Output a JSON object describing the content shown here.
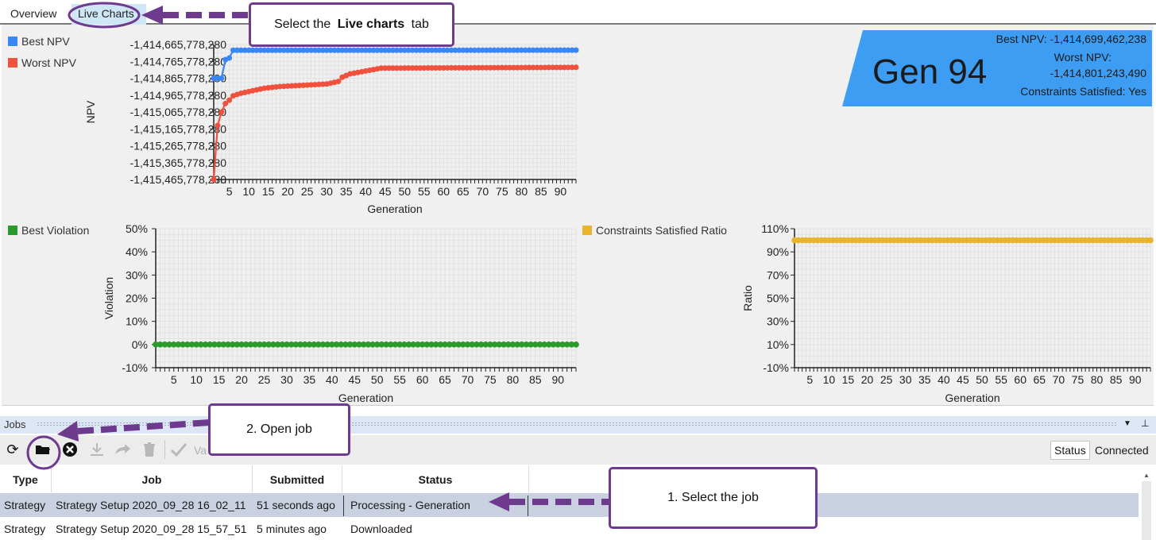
{
  "tabs": [
    {
      "label": "Overview"
    },
    {
      "label": "Live Charts"
    }
  ],
  "npv_chart": {
    "legend": [
      {
        "name": "Best NPV",
        "color": "#3a86f5"
      },
      {
        "name": "Worst NPV",
        "color": "#f0503c"
      }
    ],
    "ylabel": "NPV",
    "xlabel": "Generation",
    "yticks": [
      "-1,414,665,778,280",
      "-1,414,765,778,280",
      "-1,414,865,778,280",
      "-1,414,965,778,280",
      "-1,415,065,778,280",
      "-1,415,165,778,280",
      "-1,415,265,778,280",
      "-1,415,365,778,280",
      "-1,415,465,778,280"
    ],
    "xticks": [
      "5",
      "10",
      "15",
      "20",
      "25",
      "30",
      "35",
      "40",
      "45",
      "50",
      "55",
      "60",
      "65",
      "70",
      "75",
      "80",
      "85",
      "90"
    ]
  },
  "gen_badge": {
    "title": "Gen 94",
    "best_npv": "Best NPV: -1,414,699,462,238",
    "worst_npv_label": "Worst NPV:",
    "worst_npv_value": "-1,414,801,243,490",
    "constraints": "Constraints Satisfied: Yes",
    "color": "#3d9df2"
  },
  "violation_chart": {
    "legend": [
      {
        "name": "Best Violation",
        "color": "#2a9a2a"
      }
    ],
    "ylabel": "Violation",
    "xlabel": "Generation",
    "yticks": [
      "50%",
      "40%",
      "30%",
      "20%",
      "10%",
      "0%",
      "-10%"
    ],
    "xticks": [
      "5",
      "10",
      "15",
      "20",
      "25",
      "30",
      "35",
      "40",
      "45",
      "50",
      "55",
      "60",
      "65",
      "70",
      "75",
      "80",
      "85",
      "90"
    ]
  },
  "ratio_chart": {
    "legend": [
      {
        "name": "Constraints Satisfied Ratio",
        "color": "#e8b430"
      }
    ],
    "ylabel": "Ratio",
    "xlabel": "Generation",
    "yticks": [
      "110%",
      "90%",
      "70%",
      "50%",
      "30%",
      "10%",
      "-10%"
    ],
    "xticks": [
      "5",
      "10",
      "15",
      "20",
      "25",
      "30",
      "35",
      "40",
      "45",
      "50",
      "55",
      "60",
      "65",
      "70",
      "75",
      "80",
      "85",
      "90"
    ]
  },
  "chart_data": [
    {
      "type": "line",
      "xlabel": "Generation",
      "ylabel": "NPV",
      "xlim": [
        1,
        94
      ],
      "ylim": [
        -1415465778280,
        -1414665778280
      ],
      "series": [
        {
          "name": "Best NPV",
          "color": "#3a86f5",
          "x": [
            1,
            2,
            3,
            4,
            5,
            6,
            94
          ],
          "y": [
            -1414865778280,
            -1414865778280,
            -1414865778280,
            -1414755778280,
            -1414745778280,
            -1414700000000,
            -1414699462238
          ]
        },
        {
          "name": "Worst NPV",
          "color": "#f0503c",
          "x": [
            1,
            2,
            3,
            4,
            5,
            6,
            8,
            10,
            14,
            18,
            22,
            26,
            30,
            33,
            34,
            36,
            44,
            94
          ],
          "y": [
            -1415465778280,
            -1415145778280,
            -1415065778280,
            -1415015778280,
            -1414995778280,
            -1414970000000,
            -1414955000000,
            -1414945000000,
            -1414925000000,
            -1414915000000,
            -1414910000000,
            -1414905000000,
            -1414900000000,
            -1414885000000,
            -1414860000000,
            -1414840000000,
            -1414806000000,
            -1414801243490
          ]
        }
      ]
    },
    {
      "type": "line",
      "xlabel": "Generation",
      "ylabel": "Violation",
      "xlim": [
        1,
        94
      ],
      "ylim": [
        -10,
        50
      ],
      "series": [
        {
          "name": "Best Violation",
          "color": "#2a9a2a",
          "x": [
            1,
            94
          ],
          "y": [
            0,
            0
          ]
        }
      ]
    },
    {
      "type": "line",
      "xlabel": "Generation",
      "ylabel": "Ratio",
      "xlim": [
        1,
        94
      ],
      "ylim": [
        -10,
        110
      ],
      "series": [
        {
          "name": "Constraints Satisfied Ratio",
          "color": "#e8b430",
          "x": [
            1,
            94
          ],
          "y": [
            100,
            100
          ]
        }
      ]
    }
  ],
  "jobs_panel": {
    "title": "Jobs",
    "toolbar": {
      "validate_partial": "Va",
      "status_label": "Status",
      "connection": "Connected"
    },
    "columns": [
      "Type",
      "Job",
      "Submitted",
      "Status"
    ],
    "rows": [
      {
        "type": "Strategy",
        "job": "Strategy Setup 2020_09_28 16_02_11",
        "submitted": "51 seconds ago",
        "status": "Processing - Generation"
      },
      {
        "type": "Strategy",
        "job": "Strategy Setup 2020_09_28 15_57_51",
        "submitted": "5 minutes ago",
        "status": "Downloaded"
      }
    ]
  },
  "callouts": {
    "tab": {
      "prefix": "Select the ",
      "bold": "Live charts",
      "suffix": " tab"
    },
    "open_job": "2. Open job",
    "select_job": "1. Select the job",
    "color": "#6d3a8e"
  }
}
